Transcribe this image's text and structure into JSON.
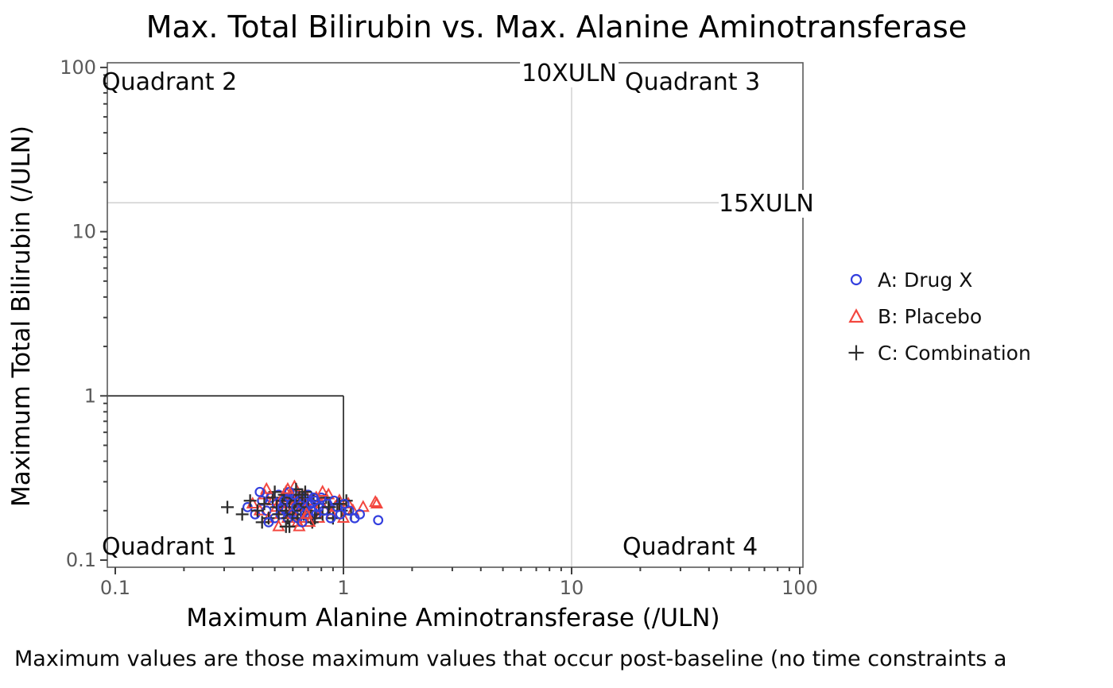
{
  "title": "Max. Total Bilirubin vs. Max. Alanine Aminotransferase",
  "footnote": "Maximum values are those maximum values that occur post-baseline (no time constraints a",
  "chart_data": {
    "type": "scatter",
    "title": "Max. Total Bilirubin vs. Max. Alanine Aminotransferase",
    "xlabel": "Maximum Alanine Aminotransferase (/ULN)",
    "ylabel": "Maximum Total Bilirubin (/ULN)",
    "xscale": "log",
    "yscale": "log",
    "xlim": [
      0.092,
      103
    ],
    "ylim": [
      0.09,
      107
    ],
    "grid": false,
    "legend_position": "right-outside",
    "colors": {
      "axis": "#5A5A5A",
      "tick": "#3F3F3F",
      "tick_label": "#5A5A5A",
      "reference_line": "#CBCBCB",
      "quadrant_line": "#1A1A1A"
    },
    "x_axis": {
      "ticks": [
        {
          "value": 0.1,
          "label": "0.1"
        },
        {
          "value": 1,
          "label": "1"
        },
        {
          "value": 10,
          "label": "10"
        },
        {
          "value": 100,
          "label": "100"
        }
      ],
      "minor_ticks": [
        0.2,
        0.3,
        0.4,
        0.5,
        0.6,
        0.7,
        0.8,
        0.9,
        2,
        3,
        4,
        5,
        6,
        7,
        8,
        9,
        20,
        30,
        40,
        50,
        60,
        70,
        80,
        90
      ]
    },
    "y_axis": {
      "ticks": [
        {
          "value": 0.1,
          "label": "0.1"
        },
        {
          "value": 1,
          "label": "1"
        },
        {
          "value": 10,
          "label": "10"
        },
        {
          "value": 100,
          "label": "100"
        }
      ],
      "minor_ticks": [
        0.2,
        0.3,
        0.4,
        0.5,
        0.6,
        0.7,
        0.8,
        0.9,
        2,
        3,
        4,
        5,
        6,
        7,
        8,
        9,
        20,
        30,
        40,
        50,
        60,
        70,
        80,
        90
      ]
    },
    "reference_lines": [
      {
        "orientation": "vertical",
        "value": 10,
        "label": "10XULN"
      },
      {
        "orientation": "horizontal",
        "value": 15,
        "label": "15XULN"
      }
    ],
    "quadrant_box": {
      "x": 1,
      "y": 1
    },
    "quadrants": [
      {
        "label": "Quadrant 1",
        "position": "bottom-left"
      },
      {
        "label": "Quadrant 2",
        "position": "top-left"
      },
      {
        "label": "Quadrant 3",
        "position": "top-right"
      },
      {
        "label": "Quadrant 4",
        "position": "bottom-right"
      }
    ],
    "series": [
      {
        "name": "A: Drug X",
        "marker": "circle",
        "color": "#333FDE",
        "x": [
          0.38,
          0.41,
          0.44,
          0.46,
          0.48,
          0.5,
          0.51,
          0.52,
          0.53,
          0.54,
          0.55,
          0.56,
          0.57,
          0.58,
          0.59,
          0.6,
          0.61,
          0.62,
          0.63,
          0.64,
          0.65,
          0.66,
          0.67,
          0.68,
          0.69,
          0.7,
          0.71,
          0.72,
          0.73,
          0.75,
          0.76,
          0.78,
          0.8,
          0.82,
          0.85,
          0.88,
          0.91,
          0.94,
          0.97,
          1.01,
          1.06,
          1.12,
          1.18,
          0.43,
          0.47,
          0.58,
          0.66,
          0.74,
          1.42
        ],
        "y": [
          0.21,
          0.19,
          0.23,
          0.2,
          0.24,
          0.18,
          0.22,
          0.25,
          0.19,
          0.21,
          0.23,
          0.2,
          0.18,
          0.24,
          0.22,
          0.19,
          0.25,
          0.21,
          0.18,
          0.23,
          0.2,
          0.22,
          0.24,
          0.19,
          0.21,
          0.25,
          0.18,
          0.22,
          0.2,
          0.23,
          0.19,
          0.21,
          0.24,
          0.2,
          0.22,
          0.18,
          0.23,
          0.21,
          0.19,
          0.22,
          0.2,
          0.18,
          0.19,
          0.26,
          0.17,
          0.26,
          0.17,
          0.24,
          0.175
        ]
      },
      {
        "name": "B: Placebo",
        "marker": "triangle-up",
        "color": "#F3473F",
        "x": [
          0.4,
          0.43,
          0.45,
          0.47,
          0.49,
          0.51,
          0.53,
          0.54,
          0.55,
          0.56,
          0.57,
          0.58,
          0.59,
          0.6,
          0.61,
          0.62,
          0.63,
          0.64,
          0.65,
          0.66,
          0.67,
          0.68,
          0.69,
          0.7,
          0.72,
          0.74,
          0.76,
          0.78,
          0.8,
          0.83,
          0.86,
          0.89,
          0.92,
          0.96,
          1.0,
          1.05,
          1.1,
          1.22,
          1.4,
          0.46,
          0.52,
          0.61,
          0.71,
          0.81,
          0.64,
          0.57,
          0.69,
          1.38
        ],
        "y": [
          0.22,
          0.2,
          0.25,
          0.18,
          0.23,
          0.21,
          0.19,
          0.24,
          0.2,
          0.26,
          0.18,
          0.22,
          0.25,
          0.19,
          0.21,
          0.23,
          0.17,
          0.24,
          0.2,
          0.22,
          0.18,
          0.25,
          0.21,
          0.19,
          0.23,
          0.2,
          0.24,
          0.18,
          0.22,
          0.2,
          0.25,
          0.19,
          0.21,
          0.23,
          0.18,
          0.22,
          0.2,
          0.21,
          0.22,
          0.27,
          0.16,
          0.28,
          0.17,
          0.26,
          0.16,
          0.27,
          0.19,
          0.225
        ]
      },
      {
        "name": "C: Combination",
        "marker": "plus",
        "color": "#2E2E2E",
        "x": [
          0.31,
          0.36,
          0.39,
          0.42,
          0.45,
          0.47,
          0.49,
          0.51,
          0.52,
          0.54,
          0.55,
          0.56,
          0.57,
          0.58,
          0.59,
          0.6,
          0.61,
          0.62,
          0.63,
          0.64,
          0.65,
          0.66,
          0.67,
          0.68,
          0.7,
          0.72,
          0.74,
          0.76,
          0.78,
          0.81,
          0.84,
          0.87,
          0.9,
          0.94,
          0.98,
          1.03,
          1.08,
          0.44,
          0.5,
          0.58,
          0.66,
          0.73,
          0.62,
          0.56,
          0.68,
          0.75,
          0.86,
          0.96
        ],
        "y": [
          0.21,
          0.19,
          0.23,
          0.2,
          0.22,
          0.18,
          0.24,
          0.21,
          0.19,
          0.23,
          0.25,
          0.2,
          0.18,
          0.22,
          0.24,
          0.19,
          0.21,
          0.23,
          0.18,
          0.25,
          0.2,
          0.22,
          0.19,
          0.24,
          0.21,
          0.18,
          0.23,
          0.2,
          0.22,
          0.19,
          0.24,
          0.21,
          0.18,
          0.22,
          0.2,
          0.23,
          0.19,
          0.17,
          0.26,
          0.16,
          0.25,
          0.17,
          0.27,
          0.16,
          0.26,
          0.18,
          0.21,
          0.22
        ]
      }
    ]
  }
}
